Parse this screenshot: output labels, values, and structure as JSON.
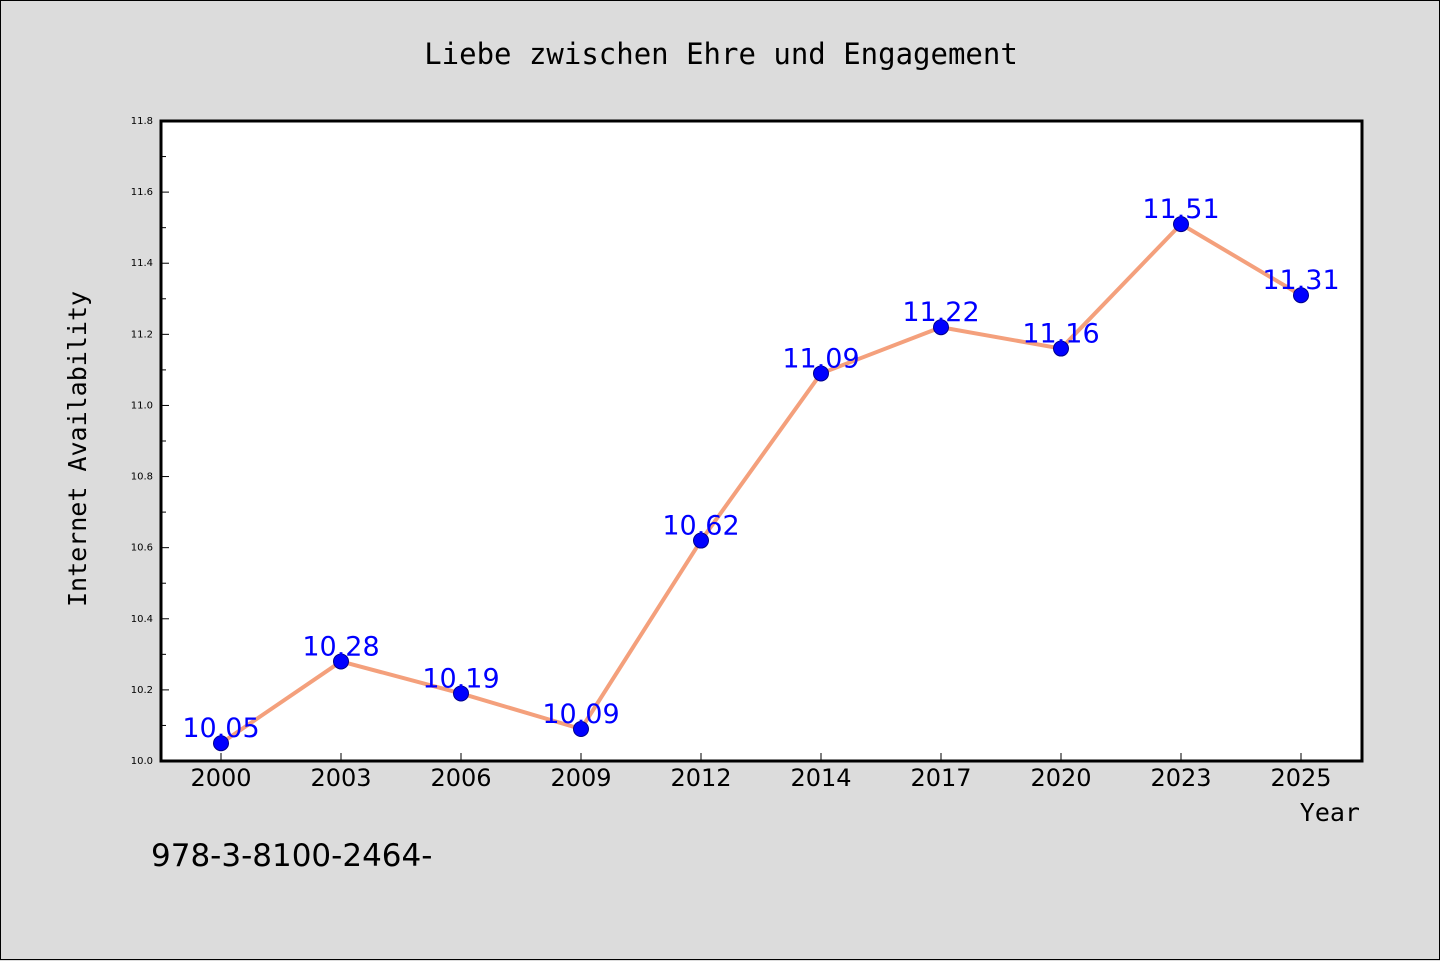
{
  "chart_data": {
    "type": "line",
    "title": "Liebe zwischen Ehre und Engagement",
    "xlabel": "Year",
    "ylabel": "Internet Availability",
    "categories": [
      "2000",
      "2003",
      "2006",
      "2009",
      "2012",
      "2014",
      "2017",
      "2020",
      "2023",
      "2025"
    ],
    "series": [
      {
        "values": [
          10.05,
          10.28,
          10.19,
          10.09,
          10.62,
          11.09,
          11.22,
          11.16,
          11.51,
          11.31
        ],
        "data_labels": [
          "10.05",
          "10.28",
          "10.19",
          "10.09",
          "10.62",
          "11.09",
          "11.22",
          "11.16",
          "11.51",
          "11.31"
        ],
        "line_color": "#f4a07c",
        "marker_color": "#0000ff"
      }
    ],
    "ylim": [
      10.0,
      11.8
    ],
    "yticks": [
      "10.0",
      "10.2",
      "10.4",
      "10.6",
      "10.8",
      "11.0",
      "11.2",
      "11.4",
      "11.6",
      "11.8"
    ],
    "grid": false,
    "legend": "none"
  },
  "footer": {
    "isbn": "978-3-8100-2464-"
  },
  "colors": {
    "background": "#dcdcdc",
    "plot_background": "#ffffff",
    "label_color": "#0000ff",
    "line_color": "#f4a07c"
  }
}
